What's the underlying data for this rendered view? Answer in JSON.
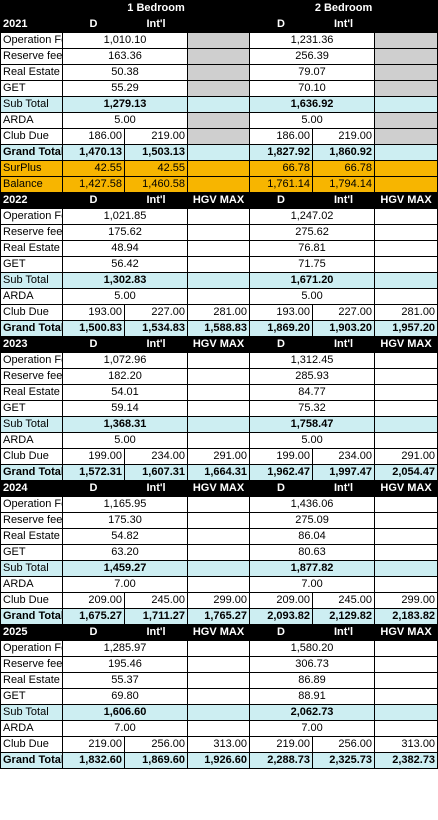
{
  "title_row": {
    "b1": "1 Bedroom",
    "b2": "2 Bedroom"
  },
  "blocks": [
    {
      "year": "2021",
      "h1": "D",
      "h2": "Int'l",
      "h3": "",
      "op": {
        "label": "Operation Fee",
        "b1": "1,010.10",
        "b2": "1,231.36"
      },
      "rf": {
        "label": "Reserve fee",
        "b1": "163.36",
        "b2": "256.39"
      },
      "re": {
        "label": "Real Estate",
        "b1": "50.38",
        "b2": "79.07"
      },
      "get": {
        "label": "GET",
        "b1": "55.29",
        "b2": "70.10"
      },
      "sub": {
        "label": "Sub Total",
        "b1": "1,279.13",
        "b2": "1,636.92"
      },
      "arda": {
        "label": "ARDA",
        "b1": "5.00",
        "b2": "5.00"
      },
      "club": {
        "label": "Club Due",
        "b1d": "186.00",
        "b1i": "219.00",
        "b2d": "186.00",
        "b2i": "219.00"
      },
      "gt": {
        "label": "Grand Total",
        "b1d": "1,470.13",
        "b1i": "1,503.13",
        "b2d": "1,827.92",
        "b2i": "1,860.92"
      },
      "surplus": {
        "label": "SurPlus",
        "b1d": "42.55",
        "b1i": "42.55",
        "b2d": "66.78",
        "b2i": "66.78"
      },
      "balance": {
        "label": "Balance",
        "b1d": "1,427.58",
        "b1i": "1,460.58",
        "b2d": "1,761.14",
        "b2i": "1,794.14"
      }
    },
    {
      "year": "2022",
      "h1": "D",
      "h2": "Int'l",
      "h3": "HGV MAX",
      "op": {
        "label": "Operation Fee",
        "b1": "1,021.85",
        "b2": "1,247.02"
      },
      "rf": {
        "label": "Reserve fee",
        "b1": "175.62",
        "b2": "275.62"
      },
      "re": {
        "label": "Real Estate",
        "b1": "48.94",
        "b2": "76.81"
      },
      "get": {
        "label": "GET",
        "b1": "56.42",
        "b2": "71.75"
      },
      "sub": {
        "label": "Sub Total",
        "b1": "1,302.83",
        "b2": "1,671.20"
      },
      "arda": {
        "label": "ARDA",
        "b1": "5.00",
        "b2": "5.00"
      },
      "club": {
        "label": "Club Due",
        "b1d": "193.00",
        "b1i": "227.00",
        "b1h": "281.00",
        "b2d": "193.00",
        "b2i": "227.00",
        "b2h": "281.00"
      },
      "gt": {
        "label": "Grand Total",
        "b1d": "1,500.83",
        "b1i": "1,534.83",
        "b1h": "1,588.83",
        "b2d": "1,869.20",
        "b2i": "1,903.20",
        "b2h": "1,957.20"
      }
    },
    {
      "year": "2023",
      "h1": "D",
      "h2": "Int'l",
      "h3": "HGV MAX",
      "op": {
        "label": "Operation Fee",
        "b1": "1,072.96",
        "b2": "1,312.45"
      },
      "rf": {
        "label": "Reserve fee",
        "b1": "182.20",
        "b2": "285.93"
      },
      "re": {
        "label": "Real Estate",
        "b1": "54.01",
        "b2": "84.77"
      },
      "get": {
        "label": "GET",
        "b1": "59.14",
        "b2": "75.32"
      },
      "sub": {
        "label": "Sub Total",
        "b1": "1,368.31",
        "b2": "1,758.47"
      },
      "arda": {
        "label": "ARDA",
        "b1": "5.00",
        "b2": "5.00"
      },
      "club": {
        "label": "Club Due",
        "b1d": "199.00",
        "b1i": "234.00",
        "b1h": "291.00",
        "b2d": "199.00",
        "b2i": "234.00",
        "b2h": "291.00"
      },
      "gt": {
        "label": "Grand Total",
        "b1d": "1,572.31",
        "b1i": "1,607.31",
        "b1h": "1,664.31",
        "b2d": "1,962.47",
        "b2i": "1,997.47",
        "b2h": "2,054.47"
      }
    },
    {
      "year": "2024",
      "h1": "D",
      "h2": "Int'l",
      "h3": "HGV MAX",
      "op": {
        "label": "Operation Fee",
        "b1": "1,165.95",
        "b2": "1,436.06"
      },
      "rf": {
        "label": "Reserve fee",
        "b1": "175.30",
        "b2": "275.09"
      },
      "re": {
        "label": "Real Estate",
        "b1": "54.82",
        "b2": "86.04"
      },
      "get": {
        "label": "GET",
        "b1": "63.20",
        "b2": "80.63"
      },
      "sub": {
        "label": "Sub Total",
        "b1": "1,459.27",
        "b2": "1,877.82"
      },
      "arda": {
        "label": "ARDA",
        "b1": "7.00",
        "b2": "7.00"
      },
      "club": {
        "label": "Club Due",
        "b1d": "209.00",
        "b1i": "245.00",
        "b1h": "299.00",
        "b2d": "209.00",
        "b2i": "245.00",
        "b2h": "299.00"
      },
      "gt": {
        "label": "Grand Total",
        "b1d": "1,675.27",
        "b1i": "1,711.27",
        "b1h": "1,765.27",
        "b2d": "2,093.82",
        "b2i": "2,129.82",
        "b2h": "2,183.82"
      }
    },
    {
      "year": "2025",
      "h1": "D",
      "h2": "Int'l",
      "h3": "HGV MAX",
      "op": {
        "label": "Operation Fee",
        "b1": "1,285.97",
        "b2": "1,580.20"
      },
      "rf": {
        "label": "Reserve fee",
        "b1": "195.46",
        "b2": "306.73"
      },
      "re": {
        "label": "Real Estate",
        "b1": "55.37",
        "b2": "86.89"
      },
      "get": {
        "label": "GET",
        "b1": "69.80",
        "b2": "88.91"
      },
      "sub": {
        "label": "Sub Total",
        "b1": "1,606.60",
        "b2": "2,062.73"
      },
      "arda": {
        "label": "ARDA",
        "b1": "7.00",
        "b2": "7.00"
      },
      "club": {
        "label": "Club Due",
        "b1d": "219.00",
        "b1i": "256.00",
        "b1h": "313.00",
        "b2d": "219.00",
        "b2i": "256.00",
        "b2h": "313.00"
      },
      "gt": {
        "label": "Grand Total",
        "b1d": "1,832.60",
        "b1i": "1,869.60",
        "b1h": "1,926.60",
        "b2d": "2,288.73",
        "b2i": "2,325.73",
        "b2h": "2,382.73"
      }
    }
  ]
}
